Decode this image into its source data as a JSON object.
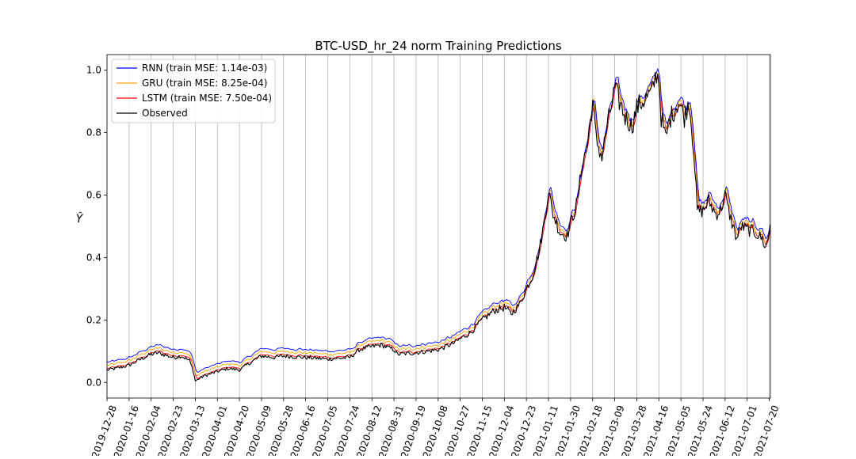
{
  "chart_data": {
    "type": "line",
    "title": "BTC-USD_hr_24 norm Training Predictions",
    "xlabel": "",
    "ylabel": "Ŷ",
    "ylim": [
      -0.05,
      1.05
    ],
    "xlim": [
      "2019-12-28",
      "2021-07-21"
    ],
    "grid": "vertical only",
    "legend_position": "top-left",
    "y_ticks": [
      "0.0",
      "0.2",
      "0.4",
      "0.6",
      "0.8",
      "1.0"
    ],
    "x_ticks": [
      "2019-12-28",
      "2020-01-16",
      "2020-02-04",
      "2020-02-23",
      "2020-03-13",
      "2020-04-01",
      "2020-04-20",
      "2020-05-09",
      "2020-05-28",
      "2020-06-16",
      "2020-07-05",
      "2020-07-24",
      "2020-08-12",
      "2020-08-31",
      "2020-09-19",
      "2020-10-08",
      "2020-10-27",
      "2020-11-15",
      "2020-12-04",
      "2020-12-23",
      "2021-01-11",
      "2021-01-30",
      "2021-02-18",
      "2021-03-09",
      "2021-03-28",
      "2021-04-16",
      "2021-05-05",
      "2021-05-24",
      "2021-06-12",
      "2021-07-01",
      "2021-07-20"
    ],
    "observed": {
      "x": [
        "2019-12-28",
        "2020-01-05",
        "2020-01-16",
        "2020-01-26",
        "2020-02-04",
        "2020-02-10",
        "2020-02-16",
        "2020-02-23",
        "2020-03-01",
        "2020-03-08",
        "2020-03-11",
        "2020-03-13",
        "2020-03-20",
        "2020-04-01",
        "2020-04-10",
        "2020-04-20",
        "2020-04-30",
        "2020-05-09",
        "2020-05-20",
        "2020-05-28",
        "2020-06-16",
        "2020-07-05",
        "2020-07-24",
        "2020-08-01",
        "2020-08-12",
        "2020-08-20",
        "2020-08-31",
        "2020-09-03",
        "2020-09-19",
        "2020-10-08",
        "2020-10-21",
        "2020-10-27",
        "2020-11-05",
        "2020-11-15",
        "2020-11-25",
        "2020-12-04",
        "2020-12-10",
        "2020-12-17",
        "2020-12-23",
        "2020-12-28",
        "2021-01-03",
        "2021-01-08",
        "2021-01-11",
        "2021-01-14",
        "2021-01-21",
        "2021-01-27",
        "2021-01-30",
        "2021-02-05",
        "2021-02-09",
        "2021-02-13",
        "2021-02-18",
        "2021-02-21",
        "2021-02-26",
        "2021-03-01",
        "2021-03-09",
        "2021-03-13",
        "2021-03-18",
        "2021-03-24",
        "2021-03-28",
        "2021-04-02",
        "2021-04-10",
        "2021-04-14",
        "2021-04-16",
        "2021-04-18",
        "2021-04-22",
        "2021-04-25",
        "2021-04-29",
        "2021-05-03",
        "2021-05-08",
        "2021-05-12",
        "2021-05-16",
        "2021-05-19",
        "2021-05-24",
        "2021-05-29",
        "2021-06-04",
        "2021-06-08",
        "2021-06-12",
        "2021-06-15",
        "2021-06-22",
        "2021-06-26",
        "2021-07-01",
        "2021-07-08",
        "2021-07-14",
        "2021-07-17",
        "2021-07-20",
        "2021-07-21"
      ],
      "y": [
        0.04,
        0.045,
        0.055,
        0.075,
        0.09,
        0.095,
        0.088,
        0.08,
        0.085,
        0.07,
        0.04,
        0.005,
        0.02,
        0.035,
        0.045,
        0.04,
        0.065,
        0.085,
        0.08,
        0.085,
        0.08,
        0.075,
        0.08,
        0.105,
        0.115,
        0.12,
        0.105,
        0.09,
        0.095,
        0.105,
        0.125,
        0.14,
        0.16,
        0.2,
        0.23,
        0.24,
        0.22,
        0.25,
        0.3,
        0.34,
        0.42,
        0.53,
        0.62,
        0.55,
        0.48,
        0.47,
        0.51,
        0.58,
        0.7,
        0.75,
        0.9,
        0.78,
        0.72,
        0.79,
        0.94,
        0.9,
        0.85,
        0.82,
        0.88,
        0.9,
        0.93,
        0.99,
        0.97,
        0.85,
        0.78,
        0.84,
        0.87,
        0.9,
        0.85,
        0.9,
        0.75,
        0.55,
        0.55,
        0.58,
        0.54,
        0.55,
        0.6,
        0.55,
        0.46,
        0.5,
        0.49,
        0.48,
        0.46,
        0.43,
        0.48,
        0.51
      ]
    },
    "series": [
      {
        "name": "RNN (train MSE: 1.14e-03)",
        "color": "#0000ff",
        "offset": 0.025,
        "lag_days": 2
      },
      {
        "name": "GRU (train MSE: 8.25e-04)",
        "color": "#ffa500",
        "offset": 0.015,
        "lag_days": 1
      },
      {
        "name": "LSTM (train MSE: 7.50e-04)",
        "color": "#ff0000",
        "offset": 0.005,
        "lag_days": 2
      },
      {
        "name": "Observed",
        "color": "#000000",
        "offset": 0,
        "lag_days": 0
      }
    ]
  }
}
